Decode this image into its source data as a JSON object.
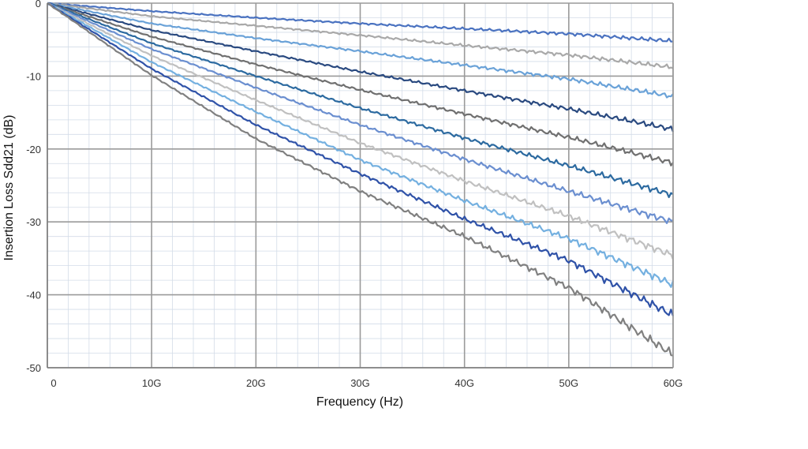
{
  "chart_data": {
    "type": "line",
    "title": "",
    "xlabel": "Frequency (Hz)",
    "ylabel": "Insertion Loss Sdd21 (dB)",
    "xlim": [
      0,
      60
    ],
    "ylim": [
      -50,
      0
    ],
    "x_ticks": [
      {
        "value": 0,
        "label": "0"
      },
      {
        "value": 10,
        "label": "10G"
      },
      {
        "value": 20,
        "label": "20G"
      },
      {
        "value": 30,
        "label": "30G"
      },
      {
        "value": 40,
        "label": "40G"
      },
      {
        "value": 50,
        "label": "50G"
      },
      {
        "value": 60,
        "label": "60G"
      }
    ],
    "y_ticks": [
      {
        "value": 0,
        "label": "0"
      },
      {
        "value": -10,
        "label": "-10"
      },
      {
        "value": -20,
        "label": "-20"
      },
      {
        "value": -30,
        "label": "-30"
      },
      {
        "value": -40,
        "label": "-40"
      },
      {
        "value": -50,
        "label": "-50"
      }
    ],
    "grid": true,
    "legend": "none",
    "x": [
      0,
      10,
      20,
      30,
      40,
      50,
      60
    ],
    "series": [
      {
        "color": "#4a72c0",
        "values": [
          0,
          -1.1,
          -2.0,
          -2.8,
          -3.5,
          -4.2,
          -5.2
        ]
      },
      {
        "color": "#a9a9a9",
        "values": [
          0,
          -1.8,
          -3.1,
          -4.4,
          -5.8,
          -7.1,
          -8.8
        ]
      },
      {
        "color": "#6aa2d8",
        "values": [
          0,
          -2.8,
          -4.8,
          -6.6,
          -8.5,
          -10.4,
          -12.8
        ]
      },
      {
        "color": "#2a4a80",
        "values": [
          0,
          -3.7,
          -6.6,
          -9.4,
          -12.0,
          -14.5,
          -17.3
        ]
      },
      {
        "color": "#707070",
        "values": [
          0,
          -4.6,
          -8.4,
          -11.9,
          -15.2,
          -18.4,
          -21.9
        ]
      },
      {
        "color": "#2c6aa0",
        "values": [
          0,
          -5.5,
          -10.0,
          -14.4,
          -18.5,
          -22.3,
          -26.3
        ]
      },
      {
        "color": "#6b8fd0",
        "values": [
          0,
          -6.3,
          -11.6,
          -16.7,
          -21.4,
          -25.8,
          -30.0
        ]
      },
      {
        "color": "#c0c0c0",
        "values": [
          0,
          -7.2,
          -13.3,
          -19.2,
          -24.4,
          -29.2,
          -34.6
        ]
      },
      {
        "color": "#74b0e0",
        "values": [
          0,
          -8.1,
          -14.9,
          -21.5,
          -27.1,
          -32.3,
          -38.6
        ]
      },
      {
        "color": "#2f52a8",
        "values": [
          0,
          -9.0,
          -16.7,
          -23.4,
          -29.6,
          -35.3,
          -42.8
        ]
      },
      {
        "color": "#808080",
        "values": [
          0,
          -9.9,
          -18.6,
          -25.8,
          -32.0,
          -39.0,
          -48.2
        ]
      }
    ]
  }
}
